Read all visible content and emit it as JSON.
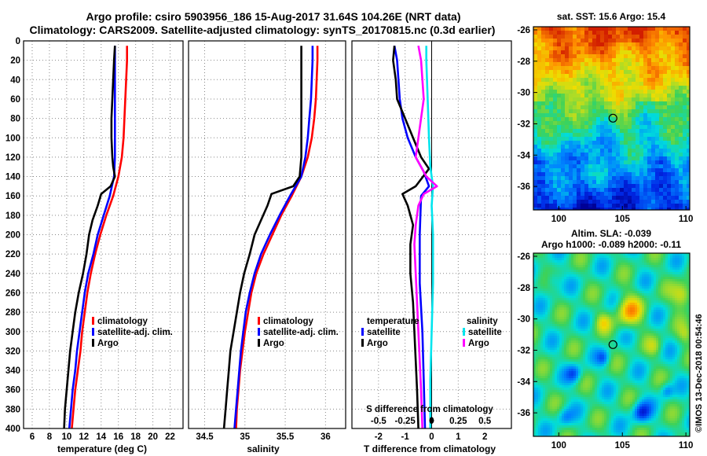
{
  "title_line1": "Argo profile: csiro 5903956_186 15-Aug-2017 31.64S 104.26E (NRT data)",
  "title_line2": "Climatology: CARS2009. Satellite-adjusted climatology: synTS_20170815.nc (0.3d earlier)",
  "chart_data": [
    {
      "type": "line",
      "name": "temperature-profile",
      "xlabel": "temperature (deg C)",
      "xlim": [
        5,
        23.5
      ],
      "xticks": [
        "6",
        "8",
        "10",
        "12",
        "14",
        "16",
        "18",
        "20",
        "22"
      ],
      "xtick_values": [
        6,
        8,
        10,
        12,
        14,
        16,
        18,
        20,
        22
      ],
      "ylim": [
        400,
        0
      ],
      "yticks": [
        "0",
        "20",
        "40",
        "60",
        "80",
        "100",
        "120",
        "140",
        "160",
        "180",
        "200",
        "220",
        "240",
        "260",
        "280",
        "300",
        "320",
        "340",
        "360",
        "380",
        "400"
      ],
      "ytick_values": [
        0,
        20,
        40,
        60,
        80,
        100,
        120,
        140,
        160,
        180,
        200,
        220,
        240,
        260,
        280,
        300,
        320,
        340,
        360,
        380,
        400
      ],
      "legend": [
        "climatology",
        "satellite-adj. clim.",
        "Argo"
      ],
      "series": [
        {
          "name": "climatology",
          "color": "#ff0000",
          "points": [
            [
              17.0,
              5
            ],
            [
              17.0,
              20
            ],
            [
              16.9,
              40
            ],
            [
              16.8,
              60
            ],
            [
              16.7,
              80
            ],
            [
              16.6,
              100
            ],
            [
              16.4,
              120
            ],
            [
              16.0,
              140
            ],
            [
              15.4,
              160
            ],
            [
              14.6,
              180
            ],
            [
              13.9,
              200
            ],
            [
              13.3,
              220
            ],
            [
              12.8,
              240
            ],
            [
              12.4,
              260
            ],
            [
              12.1,
              280
            ],
            [
              11.8,
              300
            ],
            [
              11.6,
              320
            ],
            [
              11.3,
              340
            ],
            [
              11.0,
              360
            ],
            [
              10.8,
              380
            ],
            [
              10.6,
              400
            ]
          ]
        },
        {
          "name": "satellite-adj. clim.",
          "color": "#0000ff",
          "points": [
            [
              15.6,
              5
            ],
            [
              15.6,
              20
            ],
            [
              15.6,
              40
            ],
            [
              15.6,
              60
            ],
            [
              15.6,
              80
            ],
            [
              15.6,
              100
            ],
            [
              15.6,
              120
            ],
            [
              15.5,
              140
            ],
            [
              15.0,
              160
            ],
            [
              14.3,
              180
            ],
            [
              13.6,
              200
            ],
            [
              13.1,
              220
            ],
            [
              12.5,
              240
            ],
            [
              12.1,
              260
            ],
            [
              11.8,
              280
            ],
            [
              11.5,
              300
            ],
            [
              11.2,
              320
            ],
            [
              11.0,
              340
            ],
            [
              10.7,
              360
            ],
            [
              10.5,
              380
            ],
            [
              10.3,
              400
            ]
          ]
        },
        {
          "name": "Argo",
          "color": "#000000",
          "points": [
            [
              15.6,
              5
            ],
            [
              15.5,
              20
            ],
            [
              15.4,
              40
            ],
            [
              15.3,
              60
            ],
            [
              15.2,
              80
            ],
            [
              15.2,
              100
            ],
            [
              15.3,
              120
            ],
            [
              15.4,
              130
            ],
            [
              15.6,
              140
            ],
            [
              15.1,
              150
            ],
            [
              14.0,
              158
            ],
            [
              13.6,
              170
            ],
            [
              13.0,
              185
            ],
            [
              12.6,
              200
            ],
            [
              12.3,
              220
            ],
            [
              11.9,
              240
            ],
            [
              11.4,
              260
            ],
            [
              11.0,
              280
            ],
            [
              10.7,
              300
            ],
            [
              10.4,
              320
            ],
            [
              10.2,
              340
            ],
            [
              10.0,
              360
            ],
            [
              9.8,
              380
            ],
            [
              9.7,
              400
            ]
          ]
        }
      ]
    },
    {
      "type": "line",
      "name": "salinity-profile",
      "xlabel": "salinity",
      "xlim": [
        34.3,
        36.25
      ],
      "xticks": [
        "34.5",
        "35",
        "35.5",
        "36"
      ],
      "xtick_values": [
        34.5,
        35,
        35.5,
        36
      ],
      "ylim": [
        400,
        0
      ],
      "legend": [
        "climatology",
        "satellite-adj. clim.",
        "Argo"
      ],
      "series": [
        {
          "name": "climatology",
          "color": "#ff0000",
          "points": [
            [
              35.9,
              5
            ],
            [
              35.9,
              20
            ],
            [
              35.89,
              40
            ],
            [
              35.88,
              60
            ],
            [
              35.86,
              80
            ],
            [
              35.83,
              100
            ],
            [
              35.78,
              120
            ],
            [
              35.7,
              140
            ],
            [
              35.58,
              160
            ],
            [
              35.45,
              180
            ],
            [
              35.34,
              200
            ],
            [
              35.23,
              220
            ],
            [
              35.14,
              240
            ],
            [
              35.08,
              260
            ],
            [
              35.04,
              280
            ],
            [
              35.0,
              300
            ],
            [
              34.97,
              320
            ],
            [
              34.94,
              340
            ],
            [
              34.92,
              360
            ],
            [
              34.9,
              380
            ],
            [
              34.89,
              400
            ]
          ]
        },
        {
          "name": "satellite-adj. clim.",
          "color": "#0000ff",
          "points": [
            [
              35.84,
              5
            ],
            [
              35.84,
              20
            ],
            [
              35.83,
              40
            ],
            [
              35.82,
              60
            ],
            [
              35.8,
              80
            ],
            [
              35.78,
              100
            ],
            [
              35.75,
              120
            ],
            [
              35.7,
              140
            ],
            [
              35.56,
              160
            ],
            [
              35.43,
              180
            ],
            [
              35.31,
              200
            ],
            [
              35.2,
              220
            ],
            [
              35.12,
              240
            ],
            [
              35.06,
              260
            ],
            [
              35.01,
              280
            ],
            [
              34.98,
              300
            ],
            [
              34.95,
              320
            ],
            [
              34.93,
              340
            ],
            [
              34.91,
              360
            ],
            [
              34.89,
              380
            ],
            [
              34.87,
              400
            ]
          ]
        },
        {
          "name": "Argo",
          "color": "#000000",
          "points": [
            [
              35.7,
              5
            ],
            [
              35.7,
              20
            ],
            [
              35.7,
              40
            ],
            [
              35.7,
              60
            ],
            [
              35.7,
              80
            ],
            [
              35.7,
              100
            ],
            [
              35.7,
              120
            ],
            [
              35.68,
              140
            ],
            [
              35.6,
              150
            ],
            [
              35.33,
              158
            ],
            [
              35.28,
              170
            ],
            [
              35.2,
              185
            ],
            [
              35.12,
              200
            ],
            [
              35.06,
              220
            ],
            [
              34.99,
              240
            ],
            [
              34.94,
              260
            ],
            [
              34.9,
              280
            ],
            [
              34.86,
              300
            ],
            [
              34.82,
              320
            ],
            [
              34.8,
              340
            ],
            [
              34.78,
              360
            ],
            [
              34.76,
              380
            ],
            [
              34.74,
              400
            ]
          ]
        }
      ]
    },
    {
      "type": "line",
      "name": "difference-profile",
      "xlabel": "T difference from climatology",
      "top_axis_label": "S difference from climatology",
      "xlim": [
        -3,
        3
      ],
      "xticks": [
        "-2",
        "-1",
        "0",
        "1",
        "2"
      ],
      "xtick_values": [
        -2,
        -1,
        0,
        1,
        2
      ],
      "top_ticks": [
        "-0.5",
        "-0.25",
        "0",
        "0.25",
        "0.5"
      ],
      "top_tick_values": [
        -2,
        -1,
        0,
        1,
        2
      ],
      "ylim": [
        400,
        0
      ],
      "legend_headers": [
        "temperature",
        "salinity"
      ],
      "legend_temperature": [
        "satellite",
        "Argo"
      ],
      "legend_salinity": [
        "satellite",
        "Argo"
      ],
      "series": [
        {
          "name": "T satellite",
          "color": "#0000ff",
          "points": [
            [
              -1.4,
              5
            ],
            [
              -1.3,
              20
            ],
            [
              -1.25,
              40
            ],
            [
              -1.2,
              60
            ],
            [
              -1.1,
              80
            ],
            [
              -0.9,
              100
            ],
            [
              -0.6,
              120
            ],
            [
              -0.3,
              135
            ],
            [
              -0.1,
              150
            ],
            [
              -0.4,
              160
            ],
            [
              -0.45,
              200
            ],
            [
              -0.45,
              250
            ],
            [
              -0.35,
              300
            ],
            [
              -0.3,
              350
            ],
            [
              -0.25,
              400
            ]
          ]
        },
        {
          "name": "T Argo",
          "color": "#000000",
          "points": [
            [
              -1.4,
              5
            ],
            [
              -1.45,
              20
            ],
            [
              -1.35,
              40
            ],
            [
              -1.3,
              60
            ],
            [
              -1.0,
              80
            ],
            [
              -0.7,
              100
            ],
            [
              -0.4,
              120
            ],
            [
              -0.1,
              132
            ],
            [
              -0.6,
              150
            ],
            [
              -1.1,
              158
            ],
            [
              -0.9,
              170
            ],
            [
              -0.7,
              190
            ],
            [
              -0.8,
              210
            ],
            [
              -0.8,
              240
            ],
            [
              -0.7,
              270
            ],
            [
              -0.65,
              300
            ],
            [
              -0.6,
              330
            ],
            [
              -0.55,
              360
            ],
            [
              -0.5,
              400
            ]
          ]
        },
        {
          "name": "S satellite",
          "color": "#00e5ee",
          "points": [
            [
              -0.2,
              5
            ],
            [
              -0.2,
              20
            ],
            [
              -0.15,
              60
            ],
            [
              -0.1,
              100
            ],
            [
              -0.05,
              130
            ],
            [
              0.05,
              150
            ],
            [
              0.0,
              170
            ],
            [
              0.05,
              200
            ],
            [
              0.05,
              250
            ],
            [
              0.0,
              300
            ],
            [
              -0.05,
              350
            ],
            [
              -0.05,
              400
            ]
          ]
        },
        {
          "name": "S Argo",
          "color": "#ff00ff",
          "points": [
            [
              -0.5,
              5
            ],
            [
              -0.4,
              20
            ],
            [
              -0.35,
              40
            ],
            [
              -0.3,
              60
            ],
            [
              -0.4,
              80
            ],
            [
              -0.5,
              100
            ],
            [
              -0.6,
              120
            ],
            [
              -0.2,
              140
            ],
            [
              0.2,
              150
            ],
            [
              -0.3,
              158
            ],
            [
              -0.5,
              170
            ],
            [
              -0.6,
              190
            ],
            [
              -0.65,
              210
            ],
            [
              -0.6,
              240
            ],
            [
              -0.55,
              270
            ],
            [
              -0.5,
              300
            ],
            [
              -0.45,
              330
            ],
            [
              -0.4,
              360
            ],
            [
              -0.35,
              400
            ]
          ]
        }
      ]
    },
    {
      "type": "heatmap",
      "name": "sst-map",
      "title": "sat. SST: 15.6  Argo: 15.4",
      "xlim": [
        98,
        110.3
      ],
      "ylim": [
        -37.5,
        -25.8
      ],
      "xticks": [
        "100",
        "105",
        "110"
      ],
      "xtick_values": [
        100,
        105,
        110
      ],
      "yticks": [
        "-26",
        "-28",
        "-30",
        "-32",
        "-34",
        "-36"
      ],
      "ytick_values": [
        -26,
        -28,
        -30,
        -32,
        -34,
        -36
      ],
      "marker_lon": 104.26,
      "marker_lat": -31.64
    },
    {
      "type": "heatmap",
      "name": "sla-map",
      "title_line1": "Altim. SLA: -0.039",
      "title_line2": "Argo h1000: -0.089 h2000: -0.11",
      "xlim": [
        98,
        110.3
      ],
      "ylim": [
        -37.5,
        -25.8
      ],
      "xticks": [
        "100",
        "105",
        "110"
      ],
      "xtick_values": [
        100,
        105,
        110
      ],
      "yticks": [
        "-26",
        "-28",
        "-30",
        "-32",
        "-34",
        "-36"
      ],
      "ytick_values": [
        -26,
        -28,
        -30,
        -32,
        -34,
        -36
      ],
      "marker_lon": 104.26,
      "marker_lat": -31.64
    }
  ],
  "watermark": "©IMOS 13-Dec-2018 00:54:46"
}
